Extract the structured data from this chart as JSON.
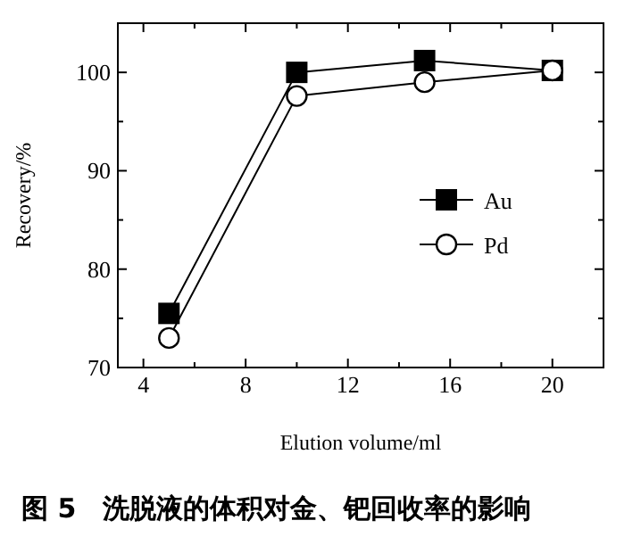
{
  "chart_data": {
    "type": "line",
    "xlabel": "Elution volume/ml",
    "ylabel": "Recovery/%",
    "annotations": [
      "图 5　洗脱液的体积对金、钯回收率的影响"
    ],
    "series": [
      {
        "name": "Au",
        "color": "#000000",
        "marker": "square",
        "x": [
          5,
          10,
          15,
          20
        ],
        "values": [
          75.5,
          100,
          101.2,
          100.2
        ]
      },
      {
        "name": "Pd",
        "color": "#000000",
        "marker": "circle",
        "x": [
          5,
          10,
          15,
          20
        ],
        "values": [
          73.0,
          97.6,
          99.0,
          100.2
        ]
      }
    ],
    "xlim": [
      3,
      22
    ],
    "ylim": [
      70,
      105
    ],
    "xticks": [
      4,
      8,
      12,
      16,
      20
    ],
    "yticks": [
      70,
      80,
      90,
      100
    ],
    "grid": false,
    "legend": "right",
    "line_style": "solid"
  }
}
